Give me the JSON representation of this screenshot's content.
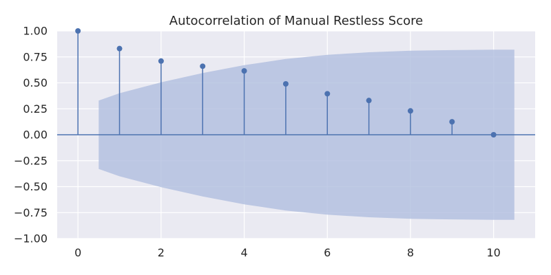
{
  "chart_data": {
    "type": "stem",
    "title": "Autocorrelation of Manual Restless Score",
    "xlabel": "",
    "ylabel": "",
    "xlim": [
      -0.5,
      11
    ],
    "ylim": [
      -1,
      1
    ],
    "grid": true,
    "x_ticks": [
      "0",
      "2",
      "4",
      "6",
      "8",
      "10"
    ],
    "y_ticks": [
      "1.00",
      "0.75",
      "0.50",
      "0.25",
      "0.00",
      "−0.25",
      "−0.50",
      "−0.75",
      "−1.00"
    ],
    "lags": [
      0,
      1,
      2,
      3,
      4,
      5,
      6,
      7,
      8,
      9,
      10
    ],
    "values": [
      1.0,
      0.83,
      0.71,
      0.66,
      0.615,
      0.49,
      0.395,
      0.33,
      0.23,
      0.125,
      0.0
    ],
    "confidence_band": {
      "x": [
        0.5,
        1,
        2,
        3,
        4,
        5,
        6,
        7,
        8,
        9,
        10,
        10.5
      ],
      "upper": [
        0.33,
        0.4,
        0.505,
        0.595,
        0.67,
        0.73,
        0.77,
        0.795,
        0.81,
        0.815,
        0.82,
        0.82
      ]
    },
    "colors": {
      "background": "#eaeaf2",
      "stem": "#4c72b0",
      "band": "#b0bedf",
      "grid": "#ffffff",
      "zero_line": "#4c72b0"
    }
  }
}
